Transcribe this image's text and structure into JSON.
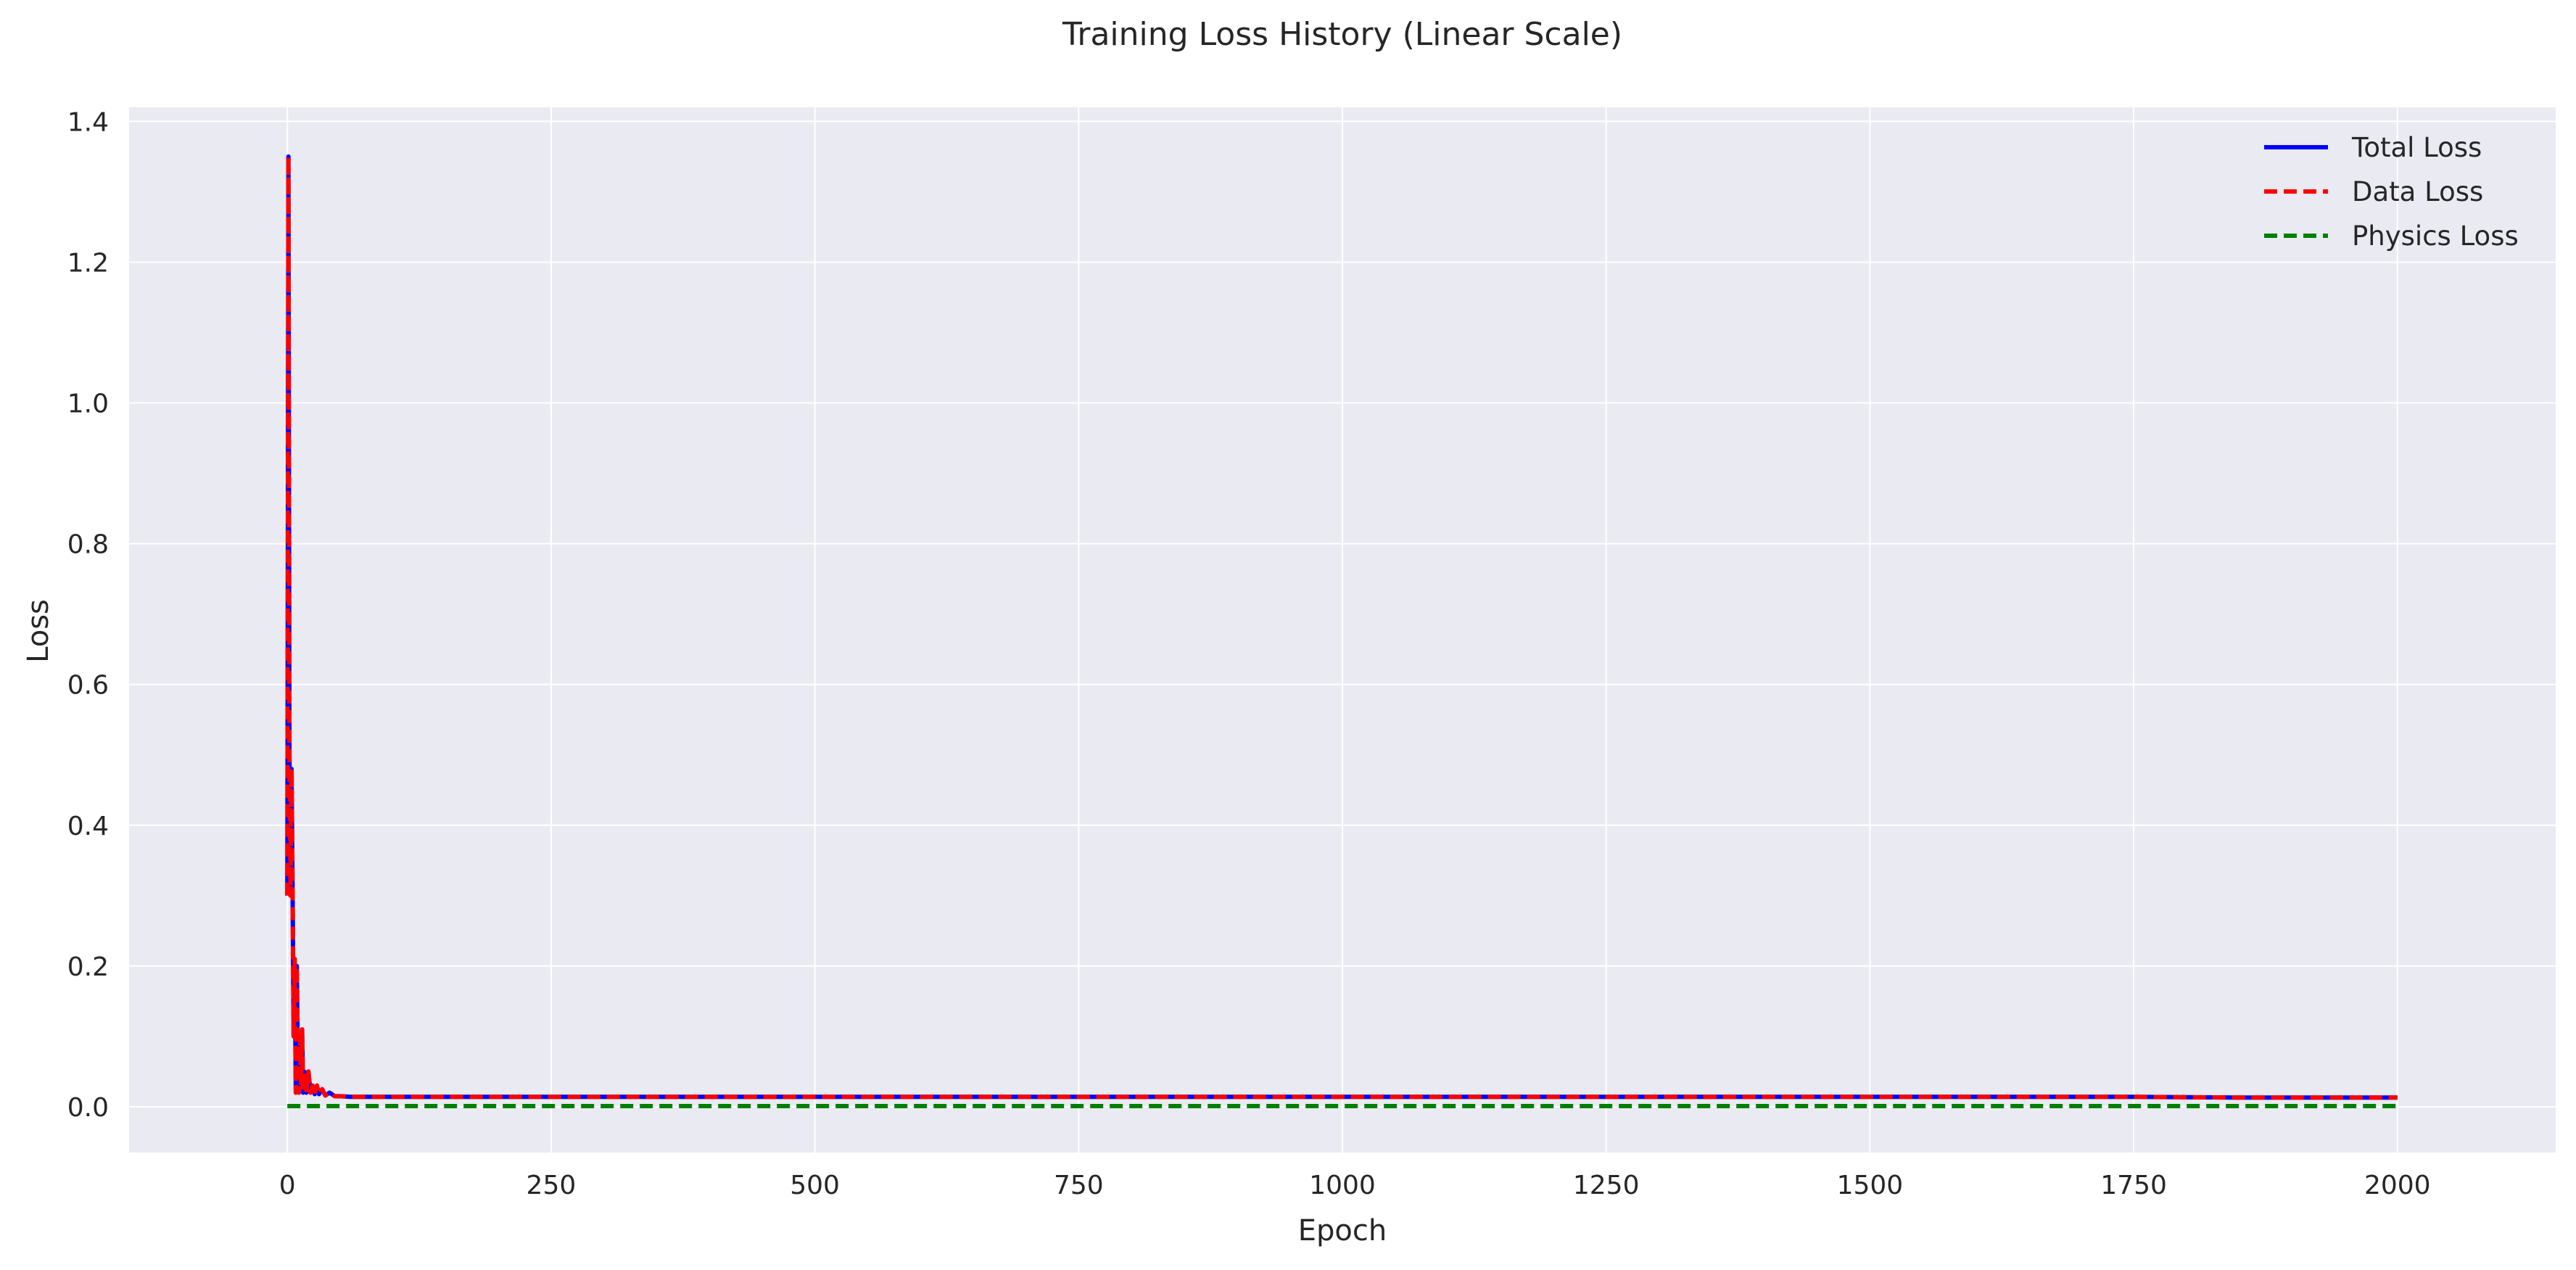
{
  "chart_data": {
    "type": "line",
    "title": "Training Loss History (Linear Scale)",
    "xlabel": "Epoch",
    "ylabel": "Loss",
    "xlim": [
      -150,
      2150
    ],
    "ylim": [
      -0.065,
      1.42
    ],
    "xticks": [
      0,
      250,
      500,
      750,
      1000,
      1250,
      1500,
      1750,
      2000
    ],
    "yticks": [
      0.0,
      0.2,
      0.4,
      0.6,
      0.8,
      1.0,
      1.2,
      1.4
    ],
    "ytick_labels": [
      "0.0",
      "0.2",
      "0.4",
      "0.6",
      "0.8",
      "1.0",
      "1.2",
      "1.4"
    ],
    "grid": true,
    "legend_position": "top-right",
    "series": [
      {
        "name": "Total Loss",
        "color": "#0000ff",
        "style": "solid",
        "x": [
          0,
          1,
          2,
          3,
          4,
          5,
          6,
          7,
          8,
          9,
          10,
          11,
          12,
          13,
          14,
          15,
          16,
          18,
          20,
          22,
          24,
          26,
          28,
          30,
          33,
          36,
          40,
          45,
          50,
          60,
          70,
          80,
          100,
          150,
          200,
          300,
          500,
          750,
          1000,
          1250,
          1500,
          1750,
          1850,
          1900,
          2000
        ],
        "y": [
          0.3,
          1.35,
          0.5,
          0.3,
          0.48,
          0.3,
          0.1,
          0.21,
          0.02,
          0.2,
          0.05,
          0.02,
          0.1,
          0.03,
          0.11,
          0.02,
          0.05,
          0.02,
          0.05,
          0.02,
          0.03,
          0.018,
          0.03,
          0.018,
          0.025,
          0.016,
          0.02,
          0.015,
          0.015,
          0.014,
          0.014,
          0.014,
          0.014,
          0.014,
          0.014,
          0.014,
          0.014,
          0.014,
          0.014,
          0.014,
          0.014,
          0.014,
          0.013,
          0.013,
          0.013
        ]
      },
      {
        "name": "Data Loss",
        "color": "#ff0000",
        "style": "dashed",
        "x": [
          0,
          1,
          2,
          3,
          4,
          5,
          6,
          7,
          8,
          9,
          10,
          11,
          12,
          13,
          14,
          15,
          16,
          18,
          20,
          22,
          24,
          26,
          28,
          30,
          33,
          36,
          40,
          45,
          50,
          60,
          70,
          80,
          100,
          150,
          200,
          300,
          500,
          750,
          1000,
          1250,
          1500,
          1750,
          1850,
          1900,
          2000
        ],
        "y": [
          0.3,
          1.35,
          0.5,
          0.3,
          0.48,
          0.3,
          0.1,
          0.21,
          0.02,
          0.2,
          0.05,
          0.02,
          0.1,
          0.03,
          0.11,
          0.02,
          0.05,
          0.02,
          0.05,
          0.02,
          0.03,
          0.018,
          0.03,
          0.018,
          0.025,
          0.016,
          0.02,
          0.015,
          0.015,
          0.014,
          0.014,
          0.014,
          0.014,
          0.014,
          0.014,
          0.014,
          0.014,
          0.014,
          0.014,
          0.014,
          0.014,
          0.014,
          0.013,
          0.013,
          0.013
        ]
      },
      {
        "name": "Physics Loss",
        "color": "#008000",
        "style": "dashed",
        "x": [
          0,
          500,
          1000,
          1500,
          2000
        ],
        "y": [
          0.001,
          0.001,
          0.001,
          0.001,
          0.001
        ]
      }
    ]
  }
}
